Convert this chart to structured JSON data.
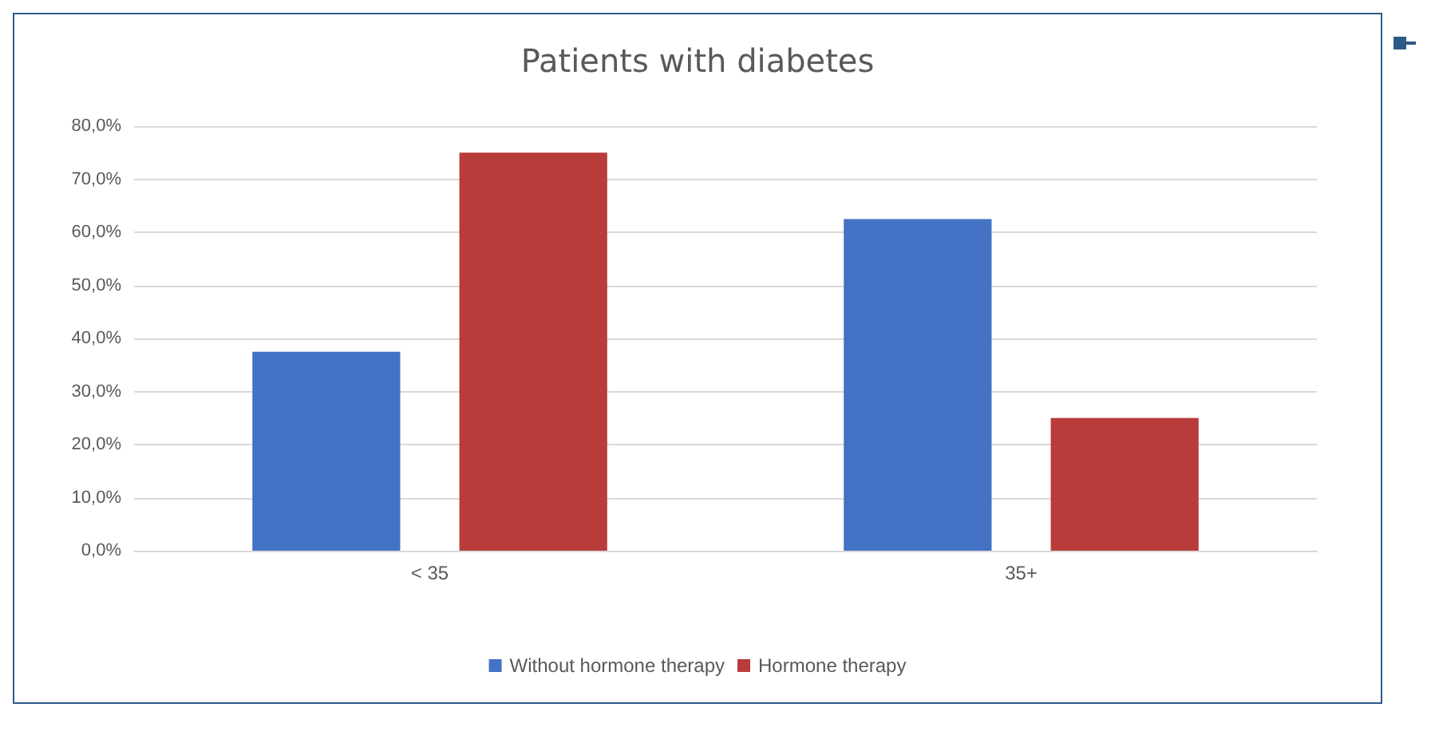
{
  "chart_data": {
    "type": "bar",
    "title": "Patients with diabetes",
    "categories": [
      "< 35",
      "35+"
    ],
    "series": [
      {
        "name": "Without hormone therapy",
        "color": "#4472c4",
        "values": [
          37.5,
          62.5
        ]
      },
      {
        "name": "Hormone therapy",
        "color": "#b83c3a",
        "values": [
          75,
          25
        ]
      }
    ],
    "ylim": [
      0,
      80
    ],
    "yticks": [
      {
        "value": 0,
        "label": "0,0%"
      },
      {
        "value": 10,
        "label": "10,0%"
      },
      {
        "value": 20,
        "label": "20,0%"
      },
      {
        "value": 30,
        "label": "30,0%"
      },
      {
        "value": 40,
        "label": "40,0%"
      },
      {
        "value": 50,
        "label": "50,0%"
      },
      {
        "value": 60,
        "label": "60,0%"
      },
      {
        "value": 70,
        "label": "70,0%"
      },
      {
        "value": 80,
        "label": "80,0%"
      }
    ],
    "grid": "y",
    "legend": "bottom"
  }
}
